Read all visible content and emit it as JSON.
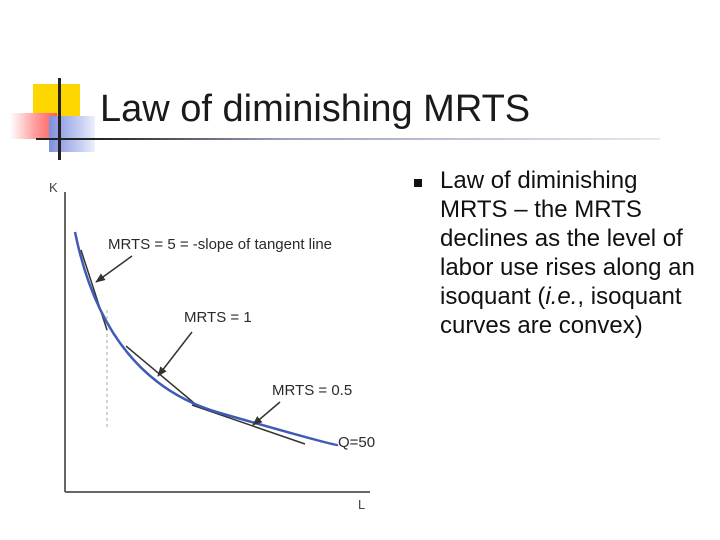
{
  "title": "Law of diminishing MRTS",
  "bullet": {
    "text_parts": [
      "Law of diminishing MRTS – the MRTS declines as the level of labor use rises along an isoquant (",
      "i.e.",
      ", isoquant curves are convex)"
    ]
  },
  "diagram": {
    "y_axis_label": "K",
    "x_axis_label": "L",
    "curve_label": "Q=50",
    "annotations": [
      {
        "label": "MRTS =  5 = -slope of tangent line",
        "slope": 5
      },
      {
        "label": "MRTS =  1",
        "slope": 1
      },
      {
        "label": "MRTS =  0.5",
        "slope": 0.5
      }
    ]
  },
  "colors": {
    "curve": "#3f5bb5",
    "tangent": "#333333",
    "accent_yellow": "#ffd700",
    "accent_red": "#ff5a5a",
    "accent_blue": "#7f8fdc"
  }
}
